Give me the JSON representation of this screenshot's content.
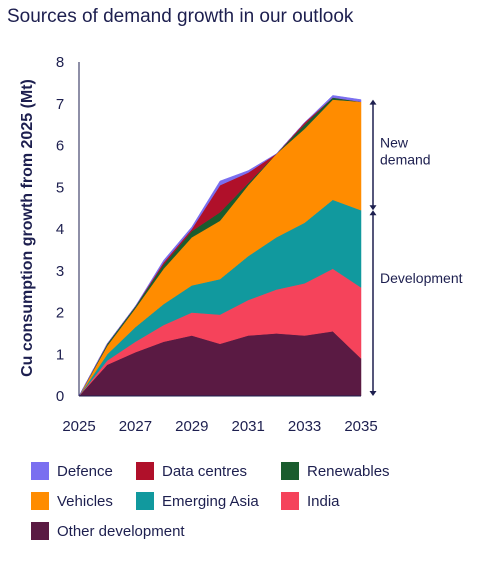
{
  "chart_data": {
    "type": "area",
    "stacked": true,
    "title": "Sources of demand growth in our outlook",
    "ylabel": "Cu consumption growth from 2025 (Mt)",
    "xlabel": "",
    "ylim": [
      0,
      8
    ],
    "xlim": [
      2025,
      2035
    ],
    "y_ticks": [
      "0",
      "1",
      "2",
      "3",
      "4",
      "5",
      "6",
      "7",
      "8"
    ],
    "x_ticks": [
      "2025",
      "2027",
      "2029",
      "2031",
      "2033",
      "2035"
    ],
    "x": [
      2025,
      2026,
      2027,
      2028,
      2029,
      2030,
      2031,
      2032,
      2033,
      2034,
      2035
    ],
    "series": [
      {
        "name": "Other development",
        "color": "#5a1a43",
        "values": [
          0,
          0.75,
          1.05,
          1.3,
          1.45,
          1.25,
          1.45,
          1.5,
          1.45,
          1.55,
          0.9
        ]
      },
      {
        "name": "India",
        "color": "#f5435b",
        "values": [
          0,
          0.1,
          0.25,
          0.4,
          0.55,
          0.7,
          0.85,
          1.05,
          1.25,
          1.5,
          1.7
        ]
      },
      {
        "name": "Emerging Asia",
        "color": "#11999e",
        "values": [
          0,
          0.15,
          0.35,
          0.5,
          0.65,
          0.85,
          1.05,
          1.25,
          1.45,
          1.65,
          1.85
        ]
      },
      {
        "name": "Vehicles",
        "color": "#ff8c00",
        "values": [
          0,
          0.2,
          0.45,
          0.85,
          1.15,
          1.4,
          1.7,
          2.0,
          2.25,
          2.4,
          2.6
        ]
      },
      {
        "name": "Renewables",
        "color": "#1a5c2e",
        "values": [
          0,
          0.05,
          0.05,
          0.1,
          0.15,
          0.2,
          0.05,
          0.0,
          0.1,
          0.05,
          0.0
        ]
      },
      {
        "name": "Data centres",
        "color": "#b0102a",
        "values": [
          0,
          0.0,
          0.0,
          0.05,
          0.05,
          0.65,
          0.25,
          0.0,
          0.05,
          0.0,
          0.0
        ]
      },
      {
        "name": "Defence",
        "color": "#7a6ff0",
        "values": [
          0,
          0.0,
          0.0,
          0.05,
          0.05,
          0.1,
          0.05,
          0.0,
          0.0,
          0.05,
          0.05
        ]
      }
    ],
    "annotations": [
      {
        "text": "New demand",
        "from": 4.45,
        "to": 7.1
      },
      {
        "text": "Development",
        "from": 0,
        "to": 4.45
      }
    ],
    "legend_order": [
      "Defence",
      "Data centres",
      "Renewables",
      "Vehicles",
      "Emerging Asia",
      "India",
      "Other development"
    ],
    "legend_placement": "bottom",
    "grid": false
  }
}
